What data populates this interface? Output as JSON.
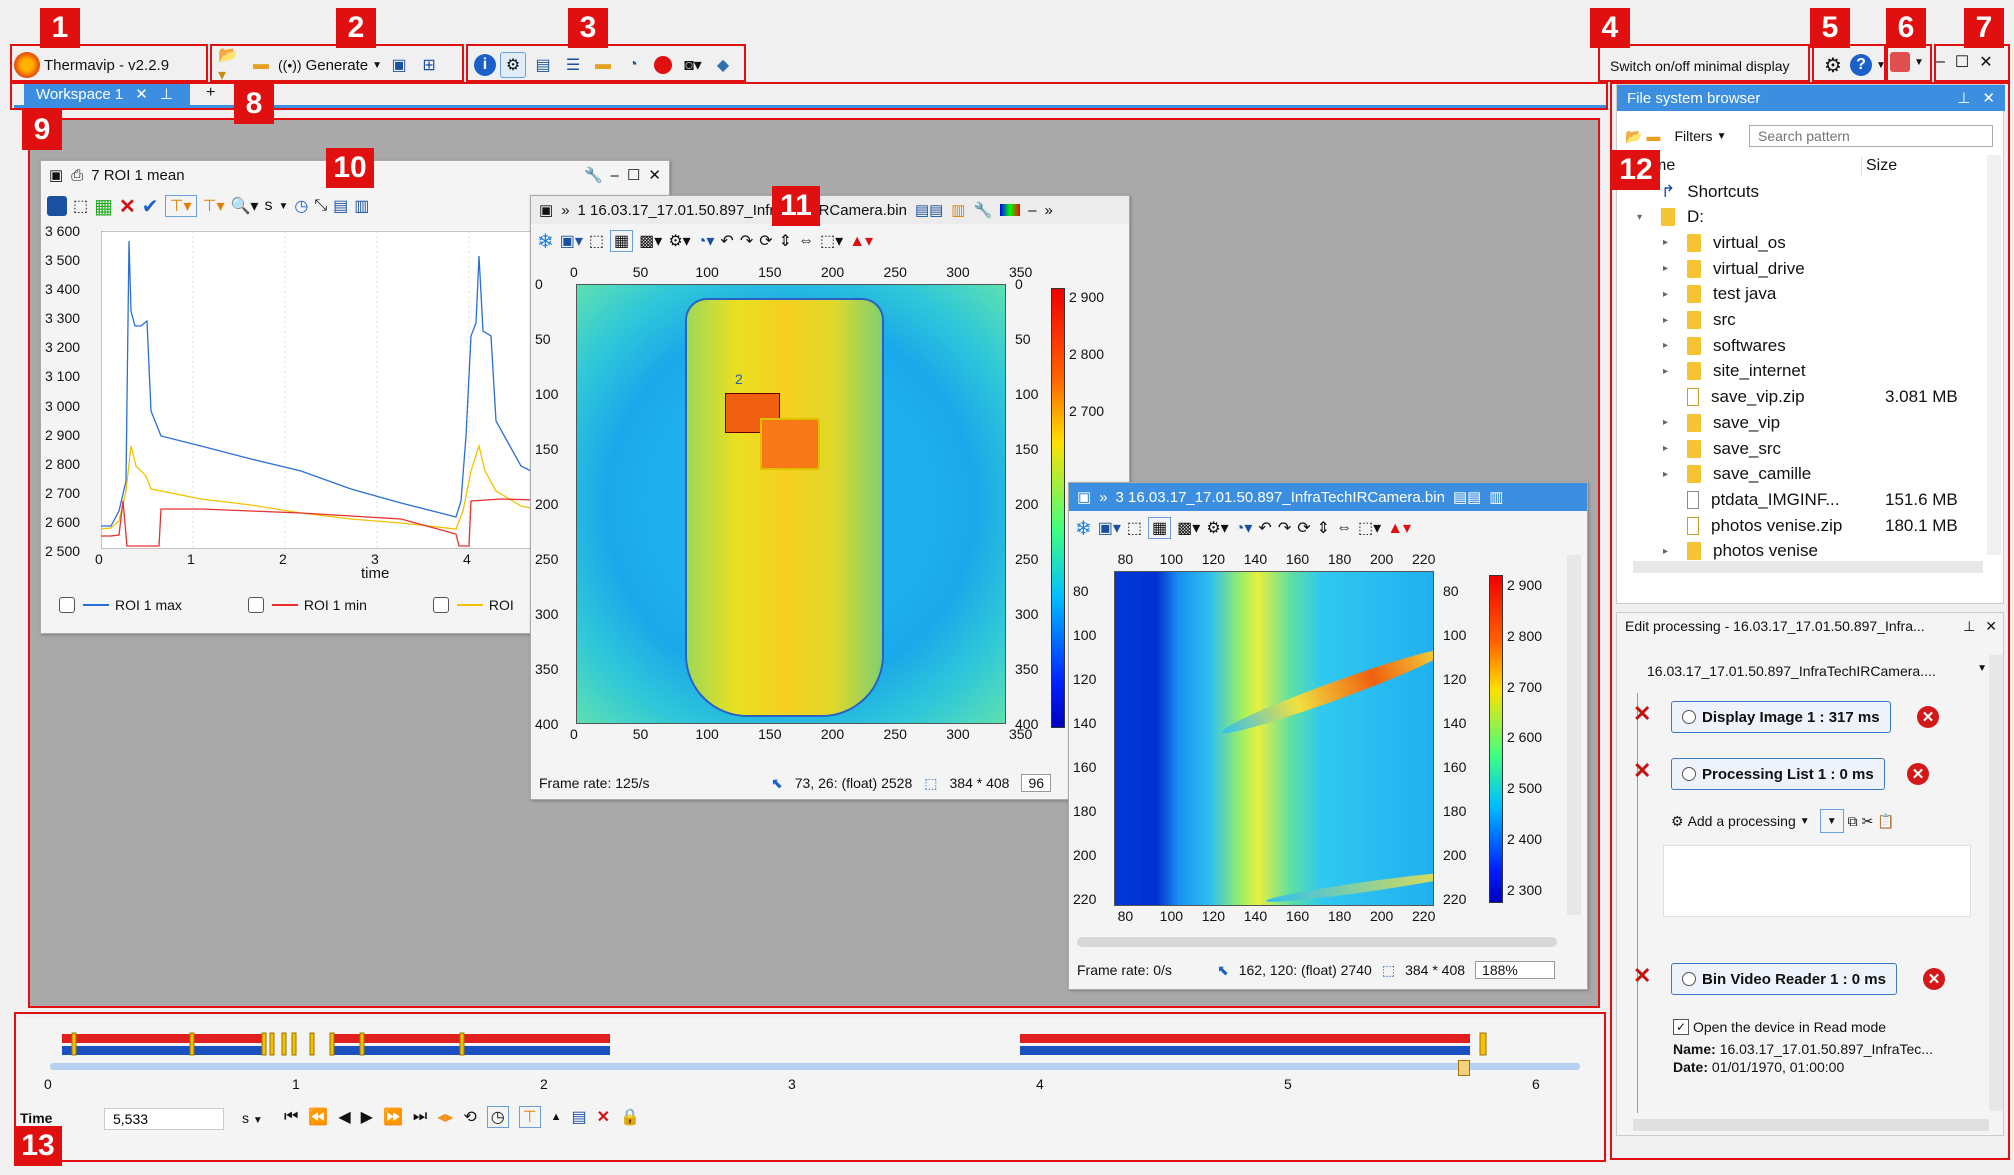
{
  "app": {
    "title": "Thermavip - v2.2.9",
    "generate_label": "Generate",
    "minimal_display_label": "Switch on/off minimal display"
  },
  "callouts": [
    "1",
    "2",
    "3",
    "4",
    "5",
    "6",
    "7",
    "8",
    "9",
    "10",
    "11",
    "12",
    "13"
  ],
  "tabs": {
    "workspace": "Workspace 1",
    "add": "+"
  },
  "plot_window": {
    "title": "7 ROI 1 mean",
    "unit_label": "s",
    "xlabel": "time",
    "yticks": [
      "3 600",
      "3 500",
      "3 400",
      "3 300",
      "3 200",
      "3 100",
      "3 000",
      "2 900",
      "2 800",
      "2 700",
      "2 600",
      "2 500"
    ],
    "xticks": [
      "0",
      "1",
      "2",
      "3",
      "4"
    ],
    "legend": [
      "ROI 1 max",
      "ROI 1 min",
      "ROI"
    ]
  },
  "image1": {
    "title": "1 16.03.17_17.01.50.897_InfraTechIRCamera.bin",
    "xticks": [
      "0",
      "50",
      "100",
      "150",
      "200",
      "250",
      "300",
      "350"
    ],
    "yticks": [
      "0",
      "50",
      "100",
      "150",
      "200",
      "250",
      "300",
      "350",
      "400"
    ],
    "cbar_ticks": [
      "2 900",
      "2 800",
      "2 700"
    ],
    "roi_label": "2",
    "frame_rate": "Frame rate: 125/s",
    "pixel_info": "73, 26: (float) 2528",
    "size_info": "384 * 408",
    "zoom": "96"
  },
  "image3": {
    "title": "3 16.03.17_17.01.50.897_InfraTechIRCamera.bin",
    "xticks": [
      "80",
      "100",
      "120",
      "140",
      "160",
      "180",
      "200",
      "220"
    ],
    "yticks": [
      "80",
      "100",
      "120",
      "140",
      "160",
      "180",
      "200",
      "220"
    ],
    "cbar_ticks": [
      "2 900",
      "2 800",
      "2 700",
      "2 600",
      "2 500",
      "2 400",
      "2 300"
    ],
    "frame_rate": "Frame rate: 0/s",
    "pixel_info": "162, 120: (float) 2740",
    "size_info": "384 * 408",
    "zoom": "188%"
  },
  "file_browser": {
    "title": "File system browser",
    "filters_label": "Filters",
    "search_placeholder": "Search pattern",
    "col_name": "me",
    "col_size": "Size",
    "items": [
      {
        "name": "Shortcuts",
        "type": "shortcut",
        "size": ""
      },
      {
        "name": "D:",
        "type": "drive",
        "size": ""
      },
      {
        "name": "virtual_os",
        "type": "folder",
        "size": ""
      },
      {
        "name": "virtual_drive",
        "type": "folder",
        "size": ""
      },
      {
        "name": "test java",
        "type": "folder",
        "size": ""
      },
      {
        "name": "src",
        "type": "folder",
        "size": ""
      },
      {
        "name": "softwares",
        "type": "folder",
        "size": ""
      },
      {
        "name": "site_internet",
        "type": "folder",
        "size": ""
      },
      {
        "name": "save_vip.zip",
        "type": "zip",
        "size": "3.081 MB"
      },
      {
        "name": "save_vip",
        "type": "folder",
        "size": ""
      },
      {
        "name": "save_src",
        "type": "folder",
        "size": ""
      },
      {
        "name": "save_camille",
        "type": "folder",
        "size": ""
      },
      {
        "name": "ptdata_IMGINF...",
        "type": "file",
        "size": "151.6 MB"
      },
      {
        "name": "photos venise.zip",
        "type": "zip",
        "size": "180.1 MB"
      },
      {
        "name": "photos venise",
        "type": "folder",
        "size": ""
      }
    ]
  },
  "edit_processing": {
    "title": "Edit processing - 16.03.17_17.01.50.897_Infra...",
    "source": "16.03.17_17.01.50.897_InfraTechIRCamera....",
    "steps": [
      "Display Image 1 : 317 ms",
      "Processing List 1 : 0 ms",
      "Bin Video Reader 1 : 0 ms"
    ],
    "add_label": "Add a processing",
    "open_label": "Open the device in Read mode",
    "name_key": "Name:",
    "name_value": "16.03.17_17.01.50.897_InfraTec...",
    "date_key": "Date:",
    "date_value": "01/01/1970, 01:00:00"
  },
  "timeline": {
    "ticks": [
      "0",
      "1",
      "2",
      "3",
      "4",
      "5",
      "6"
    ],
    "time_label": "Time",
    "time_value": "5,533",
    "unit": "s"
  },
  "colors": {
    "accent": "#1a73c8",
    "red": "#e01010",
    "tab_blue": "#3c8ee0"
  }
}
